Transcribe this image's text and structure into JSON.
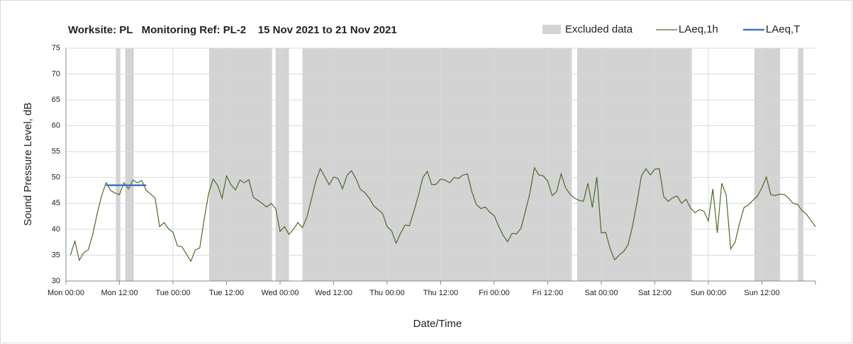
{
  "chart_data": {
    "type": "line",
    "title": "Worksite: PL   Monitoring Ref: PL-2    15 Nov 2021 to 21 Nov 2021",
    "xlabel": "Date/Time",
    "ylabel": "Sound Pressure Level, dB",
    "xlim": [
      0,
      168
    ],
    "ylim": [
      30,
      75
    ],
    "xticks": [
      {
        "value": 0,
        "label": "Mon 00:00"
      },
      {
        "value": 12,
        "label": "Mon 12:00"
      },
      {
        "value": 24,
        "label": "Tue 00:00"
      },
      {
        "value": 36,
        "label": "Tue 12:00"
      },
      {
        "value": 48,
        "label": "Wed 00:00"
      },
      {
        "value": 60,
        "label": "Wed 12:00"
      },
      {
        "value": 72,
        "label": "Thu 00:00"
      },
      {
        "value": 84,
        "label": "Thu 12:00"
      },
      {
        "value": 96,
        "label": "Fri 00:00"
      },
      {
        "value": 108,
        "label": "Fri 12:00"
      },
      {
        "value": 120,
        "label": "Sat 00:00"
      },
      {
        "value": 132,
        "label": "Sat 12:00"
      },
      {
        "value": 144,
        "label": "Sun 00:00"
      },
      {
        "value": 156,
        "label": "Sun 12:00"
      }
    ],
    "yticks": [
      30,
      35,
      40,
      45,
      50,
      55,
      60,
      65,
      70,
      75
    ],
    "grid": true,
    "legend": "top-right",
    "series": [
      {
        "name": "Excluded data",
        "color": "#d3d3d3",
        "ranges": [
          [
            11.2,
            12.2
          ],
          [
            13.3,
            15.2
          ],
          [
            32.1,
            46.2
          ],
          [
            47,
            50
          ],
          [
            53,
            113.4
          ],
          [
            114.6,
            140.3
          ],
          [
            154.3,
            160.1
          ],
          [
            164.1,
            165.3
          ]
        ]
      },
      {
        "name": "LAeq,1h",
        "color": "#4a6b2a",
        "x": [
          1,
          2,
          3,
          4,
          5,
          6,
          7,
          8,
          9,
          10,
          11,
          12,
          13,
          14,
          15,
          16,
          17,
          18,
          19,
          20,
          21,
          22,
          23,
          24,
          25,
          26,
          27,
          28,
          29,
          30,
          31,
          32,
          33,
          34,
          35,
          36,
          37,
          38,
          39,
          40,
          41,
          42,
          43,
          44,
          45,
          46,
          47,
          48,
          49,
          50,
          51,
          52,
          53,
          54,
          55,
          56,
          57,
          58,
          59,
          60,
          61,
          62,
          63,
          64,
          65,
          66,
          67,
          68,
          69,
          70,
          71,
          72,
          73,
          74,
          75,
          76,
          77,
          78,
          79,
          80,
          81,
          82,
          83,
          84,
          85,
          86,
          87,
          88,
          89,
          90,
          91,
          92,
          93,
          94,
          95,
          96,
          97,
          98,
          99,
          100,
          101,
          102,
          103,
          104,
          105,
          106,
          107,
          108,
          109,
          110,
          111,
          112,
          113,
          114,
          115,
          116,
          117,
          118,
          119,
          120,
          121,
          122,
          123,
          124,
          125,
          126,
          127,
          128,
          129,
          130,
          131,
          132,
          133,
          134,
          135,
          136,
          137,
          138,
          139,
          140,
          141,
          142,
          143,
          144,
          145,
          146,
          147,
          148,
          149,
          150,
          151,
          152,
          153,
          154,
          155,
          156,
          157,
          158,
          159,
          160,
          161,
          162,
          163,
          164,
          165,
          166,
          167,
          168
        ],
        "values": [
          35,
          37.7,
          34,
          35.5,
          36,
          39,
          43,
          46.5,
          49,
          47.5,
          47,
          46.7,
          49,
          47.8,
          49.5,
          49,
          49.4,
          47.5,
          46.8,
          46,
          40.5,
          41.3,
          40.1,
          39.4,
          36.8,
          36.6,
          35.2,
          33.8,
          36,
          36.4,
          42,
          47,
          49.7,
          48.5,
          46,
          50.3,
          48.6,
          47.6,
          49.5,
          49,
          49.6,
          46.2,
          45.6,
          45,
          44.3,
          45,
          44,
          39.6,
          40.5,
          39,
          40,
          41.3,
          40.3,
          42.3,
          45.7,
          49.3,
          51.7,
          50.2,
          48.6,
          50.1,
          49.8,
          47.8,
          50.4,
          51.3,
          49.8,
          47.7,
          47.1,
          46,
          44.5,
          43.8,
          43,
          40.5,
          39.7,
          37.3,
          39.2,
          40.8,
          40.7,
          43.5,
          46.5,
          50,
          51.2,
          48.6,
          48.7,
          49.7,
          49.5,
          49,
          50,
          49.8,
          50.5,
          50.7,
          47.2,
          44.8,
          44,
          44.3,
          43.3,
          42.6,
          40.6,
          38.8,
          37.6,
          39.2,
          39.1,
          40.2,
          43.5,
          47,
          51.9,
          50.5,
          50.3,
          49.3,
          46.5,
          47.3,
          50.7,
          48,
          46.8,
          46,
          45.6,
          45.4,
          48.9,
          44.2,
          50.1,
          39.3,
          39.4,
          36.2,
          34.1,
          35,
          35.7,
          37,
          40.6,
          45.2,
          50.3,
          51.7,
          50.5,
          51.6,
          51.7,
          46.3,
          45.4,
          46.1,
          46.4,
          45,
          45.8,
          44.1,
          43.2,
          43.8,
          43.5,
          41.6,
          47.8,
          39.3,
          48.9,
          46.6,
          36.2,
          37.5,
          41.2,
          44.2,
          44.7,
          45.6,
          46.4,
          48,
          50.1,
          46.7,
          46.5,
          46.8,
          46.7,
          46,
          45,
          44.8,
          43.6,
          42.9,
          41.7,
          40.5
        ]
      },
      {
        "name": "LAeq,T",
        "color": "#4472c4",
        "x": [
          9,
          18
        ],
        "values": [
          48.5,
          48.5
        ]
      }
    ]
  }
}
